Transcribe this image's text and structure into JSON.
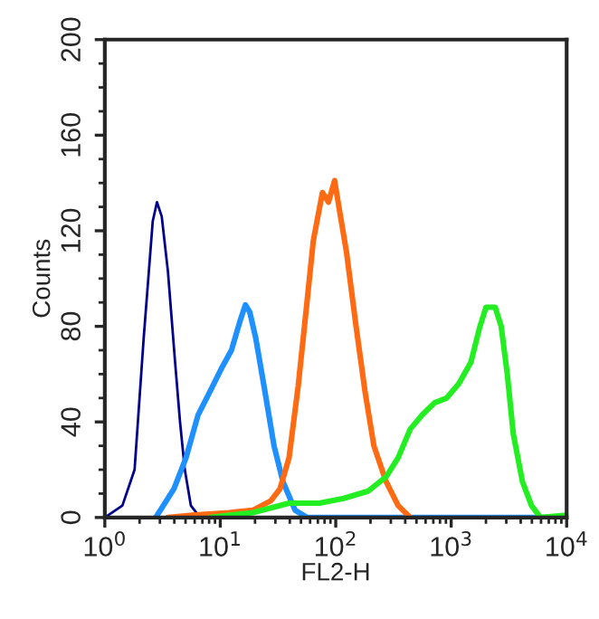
{
  "chart_data": {
    "type": "line",
    "xlabel": "FL2-H",
    "ylabel": "Counts",
    "log": "x",
    "xlim": [
      1,
      10000
    ],
    "xticks": [
      {
        "value": 1,
        "label": "10$^{0}$"
      },
      {
        "value": 10,
        "label": "10$^{1}$"
      },
      {
        "value": 100,
        "label": "10$^{2}$"
      },
      {
        "value": 1000,
        "label": "10$^{3}$"
      },
      {
        "value": 10000,
        "label": "10$^{4}$"
      }
    ],
    "ylim": [
      0,
      200
    ],
    "yticks": [
      0,
      40,
      80,
      120,
      160,
      200
    ],
    "grid": false,
    "legend": false,
    "marker": "none",
    "line_style": "solid",
    "series": [
      {
        "color": "#00008b",
        "x": [
          1,
          1.42,
          1.81,
          2.17,
          2.6,
          2.83,
          3.11,
          3.52,
          4.06,
          4.48,
          4.93,
          5.56,
          6.43,
          7.71
        ],
        "values": [
          0,
          5,
          20,
          75,
          124,
          132,
          126,
          103,
          65,
          40,
          20,
          5,
          1,
          0
        ]
      },
      {
        "color": "#1e90ff",
        "x": [
          2.76,
          3.97,
          5.05,
          6.43,
          8.2,
          10.4,
          12.5,
          15,
          16.5,
          18,
          20.3,
          24.3,
          29.2,
          34.9,
          44.5,
          56.6,
          10000
        ],
        "values": [
          0,
          12,
          25,
          43,
          53,
          63,
          70,
          83,
          89,
          86,
          75,
          53,
          30,
          15,
          3,
          0,
          0
        ]
      },
      {
        "color": "#ff6a13",
        "x": [
          3.52,
          5.7,
          11.8,
          19.1,
          27.4,
          32.9,
          39.4,
          47.3,
          56.6,
          64,
          76.7,
          86.5,
          97.7,
          110,
          124,
          149,
          179,
          214,
          273,
          347,
          442
        ],
        "values": [
          0,
          1,
          2,
          3,
          7,
          12,
          25,
          55,
          91,
          116,
          136,
          132,
          141,
          126,
          111,
          81,
          53,
          30,
          15,
          5,
          0
        ]
      },
      {
        "color": "#22ee22",
        "x": [
          8.2,
          19.1,
          39.4,
          72,
          117,
          190,
          273,
          347,
          442,
          563,
          717,
          914,
          1164,
          1482,
          1775,
          2004,
          2404,
          2710,
          3060,
          3450,
          4140,
          4960,
          5940,
          10000
        ],
        "values": [
          0,
          2,
          6,
          6,
          8,
          11,
          17,
          25,
          37,
          43,
          48,
          50,
          56,
          65,
          80,
          88,
          88,
          80,
          60,
          35,
          15,
          5,
          0,
          1
        ]
      }
    ]
  }
}
